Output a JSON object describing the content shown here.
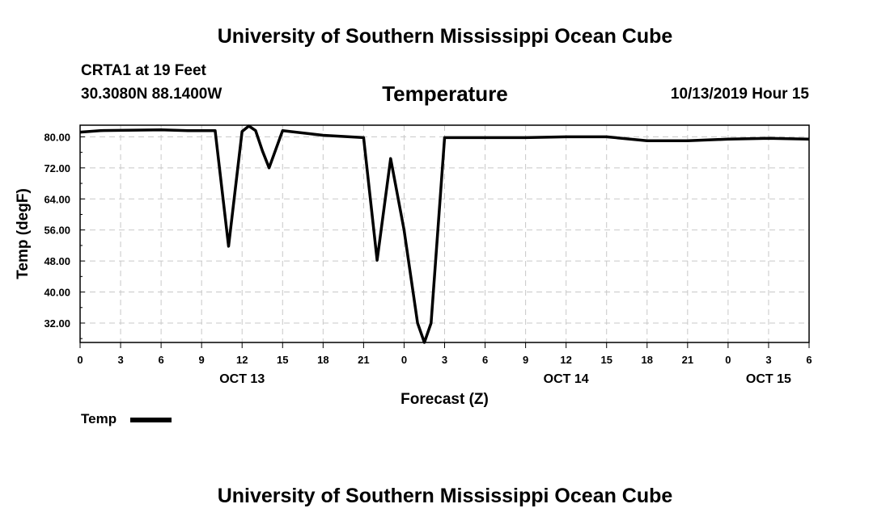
{
  "header": {
    "title": "University of Southern Mississippi Ocean Cube",
    "station": "CRTA1 at 19 Feet",
    "coordinates": "30.3080N 88.1400W",
    "parameter": "Temperature",
    "datetime": "10/13/2019 Hour 15"
  },
  "footer": {
    "title": "University of Southern Mississippi Ocean Cube"
  },
  "legend": {
    "label": "Temp"
  },
  "colors": {
    "series": "#000000",
    "grid": "#c8c8c8"
  },
  "chart_data": {
    "type": "line",
    "title": "Temperature",
    "xlabel": "Forecast (Z)",
    "ylabel": "Temp (degF)",
    "xlim": [
      0,
      54
    ],
    "ylim": [
      27,
      83
    ],
    "x_ticks": [
      0,
      3,
      6,
      9,
      12,
      15,
      18,
      21,
      24,
      27,
      30,
      33,
      36,
      39,
      42,
      45,
      48,
      51,
      54
    ],
    "x_tick_labels": [
      "0",
      "3",
      "6",
      "9",
      "12",
      "15",
      "18",
      "21",
      "0",
      "3",
      "6",
      "9",
      "12",
      "15",
      "18",
      "21",
      "0",
      "3",
      "6"
    ],
    "date_labels": [
      {
        "hour": 12,
        "label": "OCT 13"
      },
      {
        "hour": 36,
        "label": "OCT 14"
      },
      {
        "hour": 51,
        "label": "OCT 15"
      }
    ],
    "y_ticks": [
      32,
      40,
      48,
      56,
      64,
      72,
      80
    ],
    "y_tick_labels": [
      "32.00",
      "40.00",
      "48.00",
      "56.00",
      "64.00",
      "72.00",
      "80.00"
    ],
    "grid": true,
    "series": [
      {
        "name": "Temp",
        "x": [
          0,
          1.5,
          6,
          8,
          10,
          11,
          12,
          12.5,
          13,
          13.5,
          14,
          15,
          18,
          21,
          22,
          23,
          24,
          25,
          25.5,
          26,
          27,
          30,
          33,
          36,
          39,
          42,
          45,
          48,
          51,
          54
        ],
        "y": [
          81.2,
          81.6,
          81.8,
          81.6,
          81.6,
          51.8,
          81.4,
          82.8,
          81.6,
          76.4,
          72.0,
          81.6,
          80.4,
          79.8,
          48.2,
          74.4,
          56.0,
          32.0,
          27.0,
          32.0,
          79.8,
          79.8,
          79.8,
          80.0,
          80.0,
          79.0,
          79.0,
          79.4,
          79.6,
          79.4
        ]
      }
    ]
  }
}
